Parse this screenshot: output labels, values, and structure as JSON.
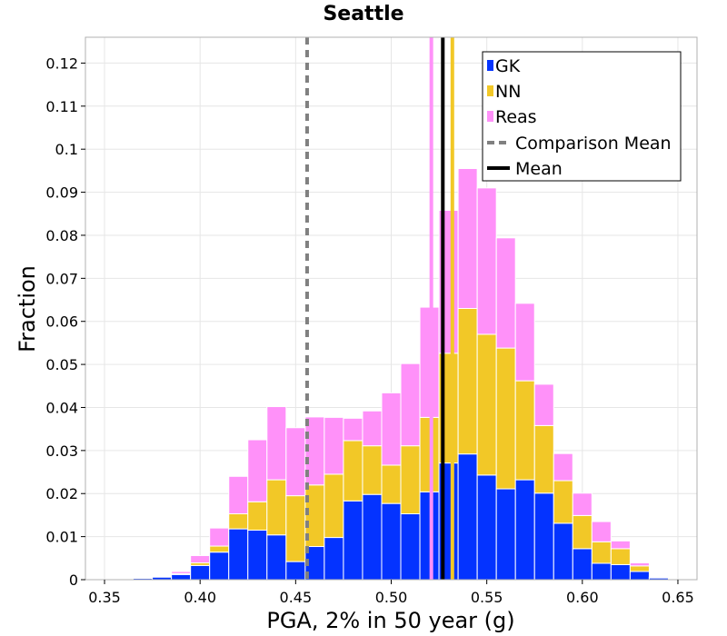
{
  "chart_data": {
    "type": "bar",
    "stacked": true,
    "title": "Seattle",
    "xlabel": "PGA, 2% in 50 year (g)",
    "ylabel": "Fraction",
    "xlim": [
      0.34,
      0.66
    ],
    "ylim": [
      0,
      0.126
    ],
    "xticks": [
      {
        "value": 0.35,
        "label": "0.35"
      },
      {
        "value": 0.4,
        "label": "0.40"
      },
      {
        "value": 0.45,
        "label": "0.45"
      },
      {
        "value": 0.5,
        "label": "0.50"
      },
      {
        "value": 0.55,
        "label": "0.55"
      },
      {
        "value": 0.6,
        "label": "0.60"
      },
      {
        "value": 0.65,
        "label": "0.65"
      }
    ],
    "yticks": [
      {
        "value": 0,
        "label": "0"
      },
      {
        "value": 0.01,
        "label": "0.01"
      },
      {
        "value": 0.02,
        "label": "0.02"
      },
      {
        "value": 0.03,
        "label": "0.03"
      },
      {
        "value": 0.04,
        "label": "0.04"
      },
      {
        "value": 0.05,
        "label": "0.05"
      },
      {
        "value": 0.06,
        "label": "0.06"
      },
      {
        "value": 0.07,
        "label": "0.07"
      },
      {
        "value": 0.08,
        "label": "0.08"
      },
      {
        "value": 0.09,
        "label": "0.09"
      },
      {
        "value": 0.1,
        "label": "0.1"
      },
      {
        "value": 0.11,
        "label": "0.11"
      },
      {
        "value": 0.12,
        "label": "0.12"
      }
    ],
    "grid": true,
    "legend_position": "top-right",
    "bin_width": 0.01,
    "x": [
      0.35,
      0.36,
      0.37,
      0.38,
      0.39,
      0.4,
      0.41,
      0.42,
      0.43,
      0.44,
      0.45,
      0.46,
      0.47,
      0.48,
      0.49,
      0.5,
      0.51,
      0.52,
      0.53,
      0.54,
      0.55,
      0.56,
      0.57,
      0.58,
      0.59,
      0.6,
      0.61,
      0.62,
      0.63,
      0.64
    ],
    "series": [
      {
        "name": "GK",
        "color": "#0433ff",
        "values": [
          0.0001,
          0.0002,
          0.0003,
          0.0006,
          0.0012,
          0.0033,
          0.0064,
          0.0118,
          0.0115,
          0.0104,
          0.0042,
          0.0077,
          0.0098,
          0.0183,
          0.0198,
          0.0177,
          0.0153,
          0.0204,
          0.0271,
          0.0292,
          0.0243,
          0.0211,
          0.0232,
          0.0201,
          0.0131,
          0.0072,
          0.0038,
          0.0035,
          0.0019,
          0.0004
        ]
      },
      {
        "name": "NN",
        "color": "#f2c827",
        "values": [
          0,
          0,
          0,
          0.0001,
          0.0002,
          0.0006,
          0.0014,
          0.0035,
          0.0066,
          0.0128,
          0.0153,
          0.0143,
          0.0147,
          0.014,
          0.0113,
          0.0089,
          0.0158,
          0.0173,
          0.0255,
          0.0338,
          0.0327,
          0.0327,
          0.023,
          0.0157,
          0.0099,
          0.0077,
          0.005,
          0.0037,
          0.0013,
          0.0001
        ]
      },
      {
        "name": "Reas",
        "color": "#ff91f9",
        "values": [
          0,
          0,
          0,
          0,
          0.0005,
          0.0017,
          0.0042,
          0.0087,
          0.0144,
          0.017,
          0.0158,
          0.0158,
          0.0132,
          0.0052,
          0.0081,
          0.0168,
          0.0191,
          0.0256,
          0.0332,
          0.0325,
          0.034,
          0.0256,
          0.018,
          0.0096,
          0.0063,
          0.0052,
          0.0047,
          0.0018,
          0.0007,
          0.0001
        ]
      }
    ],
    "lines": [
      {
        "name": "Comparison Mean",
        "x": 0.456,
        "color": "#808080",
        "style": "dashed",
        "in_legend": true
      },
      {
        "name": "Mean",
        "x": 0.527,
        "color": "#000000",
        "style": "solid",
        "in_legend": true
      },
      {
        "x": 0.521,
        "color": "#ff91f9",
        "style": "solid",
        "in_legend": false
      },
      {
        "x": 0.532,
        "color": "#f2c827",
        "style": "solid",
        "in_legend": false
      }
    ]
  }
}
